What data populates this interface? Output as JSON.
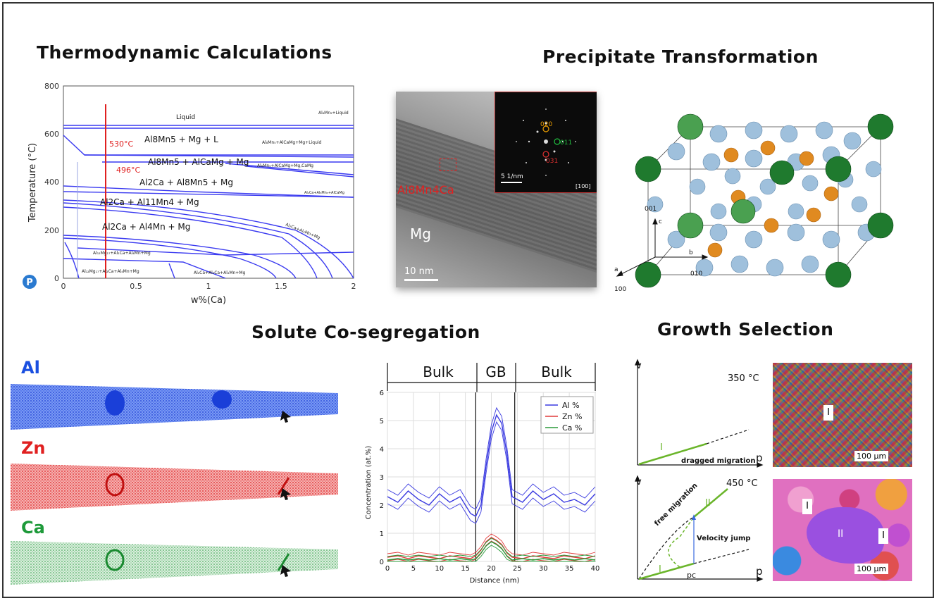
{
  "titles": {
    "thermo": "Thermodynamic Calculations",
    "precip": "Precipitate Transformation",
    "coseg": "Solute Co-segregation",
    "growth": "Growth Selection"
  },
  "phase_diagram": {
    "xlabel": "w%(Ca)",
    "ylabel": "Temperature (°C)",
    "x_ticks": [
      "0",
      "0.5",
      "1",
      "1.5",
      "2"
    ],
    "y_ticks": [
      "0",
      "200",
      "400",
      "600",
      "800"
    ],
    "temps": {
      "t530": "530°C",
      "t496": "496°C"
    },
    "regions": {
      "liquid": "Liquid",
      "r1": "Al8Mn5 + Mg + L",
      "r2": "Al8Mn5 + AlCaMg + Mg",
      "r3": "Al2Ca + Al8Mn5 + Mg",
      "r4": "Al2Ca + Al11Mn4 + Mg",
      "r5": "Al2Ca + Al4Mn + Mg"
    },
    "small_labels": {
      "s1": "Al₈Mn₅+Liquid",
      "s2": "Al₈Mn₅+AlCaMg+Mg+Liquid",
      "s3": "Al₈Mn₅+AlCaMg+Mg,CaMg",
      "s4": "Al₂Ca+Al₈Mn₅+AlCaMg",
      "s5": "Al₂Ca+Al₄Mn+Mg",
      "s6": "Al₁₂Mg₁₇+Al₂Ca+Al₄Mn+Mg",
      "s7": "Al₁₂Mg₁₇+Al₂Ca+Al₄Mn+Mg",
      "s8": "Al₂Ca+Al₂Ca+Al₄Mn+Mg"
    },
    "logo_letter": "P"
  },
  "tem": {
    "phase_label": "Al8Mn4Ca",
    "matrix_label": "Mg",
    "scale_bar": "10 nm",
    "fft_scale": "5 1/nm",
    "zone_axis": "[100]",
    "spots": {
      "s020": "020",
      "s011": "011",
      "s031": "031"
    }
  },
  "crystal": {
    "axis_c_index": "001",
    "axis_b_index": "010",
    "axis_a_index": "100",
    "c": "c",
    "b": "b",
    "a": "a"
  },
  "apt": {
    "al": "Al",
    "zn": "Zn",
    "ca": "Ca",
    "colors": {
      "al": "#1a4fe0",
      "zn": "#e02020",
      "ca": "#1e9a3a"
    }
  },
  "profile": {
    "bulk_left": "Bulk",
    "gb": "GB",
    "bulk_right": "Bulk",
    "xlabel": "Distance (nm)",
    "ylabel": "Concentration (at.%)",
    "legend": [
      "Al %",
      "Zn %",
      "Ca %"
    ]
  },
  "chart_data": {
    "type": "line",
    "xlabel": "Distance (nm)",
    "ylabel": "Concentration (at.%)",
    "xlim": [
      0,
      40
    ],
    "ylim": [
      0,
      6
    ],
    "x_ticks": [
      0,
      5,
      10,
      15,
      20,
      25,
      30,
      35,
      40
    ],
    "y_ticks": [
      0,
      1,
      2,
      3,
      4,
      5,
      6
    ],
    "grid": true,
    "legend_position": "top-right",
    "x": [
      0,
      2,
      4,
      6,
      8,
      10,
      12,
      14,
      16,
      17,
      18,
      19,
      20,
      21,
      22,
      23,
      24,
      26,
      28,
      30,
      32,
      34,
      36,
      38,
      40
    ],
    "series": [
      {
        "name": "Al %",
        "color": "#3a3ae0",
        "values": [
          2.3,
          2.1,
          2.5,
          2.2,
          2.0,
          2.4,
          2.1,
          2.3,
          1.7,
          1.6,
          2.0,
          3.4,
          4.6,
          5.2,
          4.9,
          3.8,
          2.3,
          2.1,
          2.5,
          2.2,
          2.4,
          2.1,
          2.2,
          2.0,
          2.4
        ]
      },
      {
        "name": "Zn %",
        "color": "#e03a3a",
        "values": [
          0.15,
          0.2,
          0.1,
          0.2,
          0.15,
          0.1,
          0.2,
          0.15,
          0.1,
          0.2,
          0.4,
          0.7,
          0.85,
          0.75,
          0.6,
          0.3,
          0.15,
          0.1,
          0.2,
          0.15,
          0.1,
          0.2,
          0.15,
          0.1,
          0.2
        ]
      },
      {
        "name": "Ca %",
        "color": "#2a9a3a",
        "values": [
          0.05,
          0.1,
          0.05,
          0.1,
          0.05,
          0.1,
          0.05,
          0.1,
          0.05,
          0.1,
          0.3,
          0.55,
          0.7,
          0.6,
          0.45,
          0.2,
          0.05,
          0.1,
          0.05,
          0.1,
          0.05,
          0.1,
          0.05,
          0.1,
          0.05
        ]
      }
    ]
  },
  "growth": {
    "axis_v": "v",
    "axis_p": "p",
    "t350": "350 °C",
    "t450": "450 °C",
    "dragged": "dragged migration",
    "free": "free migration",
    "velocity_jump": "Velocity jump",
    "label_I": "I",
    "label_II": "II",
    "pc": "pc",
    "scale": "100 µm"
  }
}
